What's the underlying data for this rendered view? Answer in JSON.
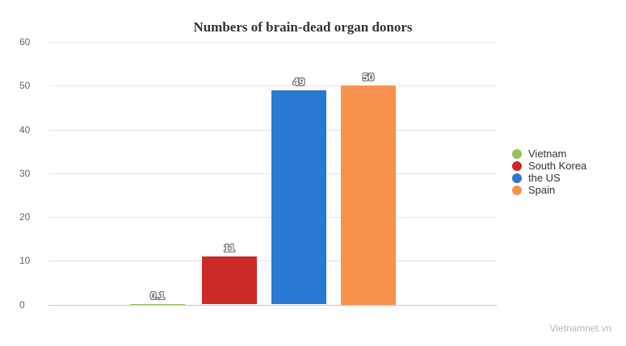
{
  "watermark": "Vietnamnet.vn",
  "chart_data": {
    "type": "bar",
    "title": "Numbers of brain-dead organ donors",
    "categories": [
      "Vietnam",
      "South Korea",
      "the US",
      "Spain"
    ],
    "values": [
      0.1,
      11,
      49,
      50
    ],
    "data_labels": [
      "0.1",
      "11",
      "49",
      "50"
    ],
    "colors": [
      "#92c35c",
      "#cb2a26",
      "#2879d2",
      "#f9924f"
    ],
    "xlabel": "",
    "ylabel": "",
    "ylim": [
      0,
      60
    ],
    "yticks": [
      0,
      10,
      20,
      30,
      40,
      50,
      60
    ],
    "grid": true,
    "grid_color": "#e6e6e6",
    "axis_line_color": "#c6c6c6",
    "legend_position": "right",
    "legend": [
      "Vietnam",
      "South Korea",
      "the US",
      "Spain"
    ]
  }
}
